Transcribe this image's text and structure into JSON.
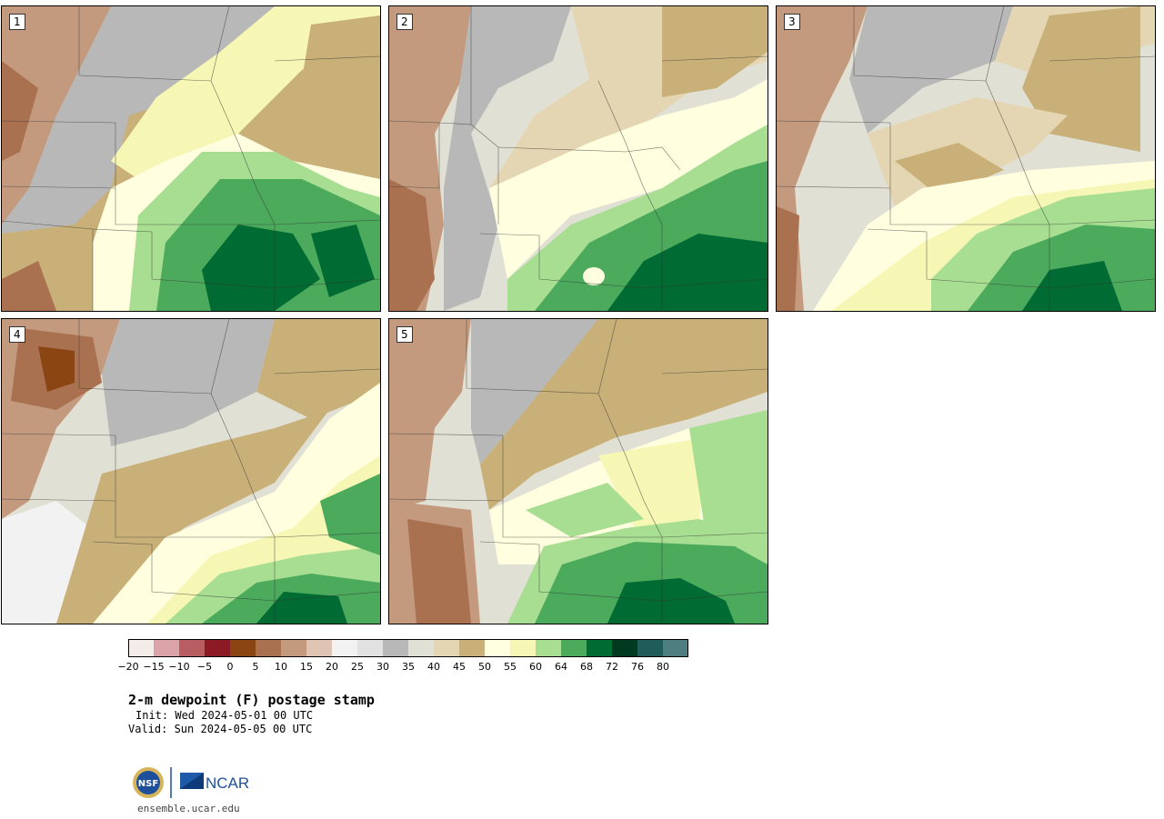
{
  "panels": [
    {
      "label": "1"
    },
    {
      "label": "2"
    },
    {
      "label": "3"
    },
    {
      "label": "4"
    },
    {
      "label": "5"
    }
  ],
  "colorbar": {
    "colors": [
      "#f4ece9",
      "#d9a3a8",
      "#b85d62",
      "#8b1a24",
      "#8b4513",
      "#a9714f",
      "#c49a7f",
      "#dfc3b3",
      "#f2f2f2",
      "#e1e1e1",
      "#b8b8b8",
      "#e1e0d4",
      "#e4d6b2",
      "#c9b078",
      "#ffffe0",
      "#f6f7b5",
      "#a8de92",
      "#4caa5c",
      "#006b32",
      "#003a20",
      "#1f5c5a",
      "#4e7e80"
    ],
    "tick_labels": [
      "−20",
      "−15",
      "−10",
      "−5",
      "0",
      "5",
      "10",
      "15",
      "20",
      "25",
      "30",
      "35",
      "40",
      "45",
      "50",
      "55",
      "60",
      "64",
      "68",
      "72",
      "76",
      "80"
    ]
  },
  "title": "2-m dewpoint (F) postage stamp",
  "init": "Init: Wed 2024-05-01 00 UTC",
  "valid": "Valid: Sun 2024-05-05 00 UTC",
  "logos": {
    "nsf": "NSF",
    "ncar": "NCAR"
  },
  "site": "ensemble.ucar.edu"
}
